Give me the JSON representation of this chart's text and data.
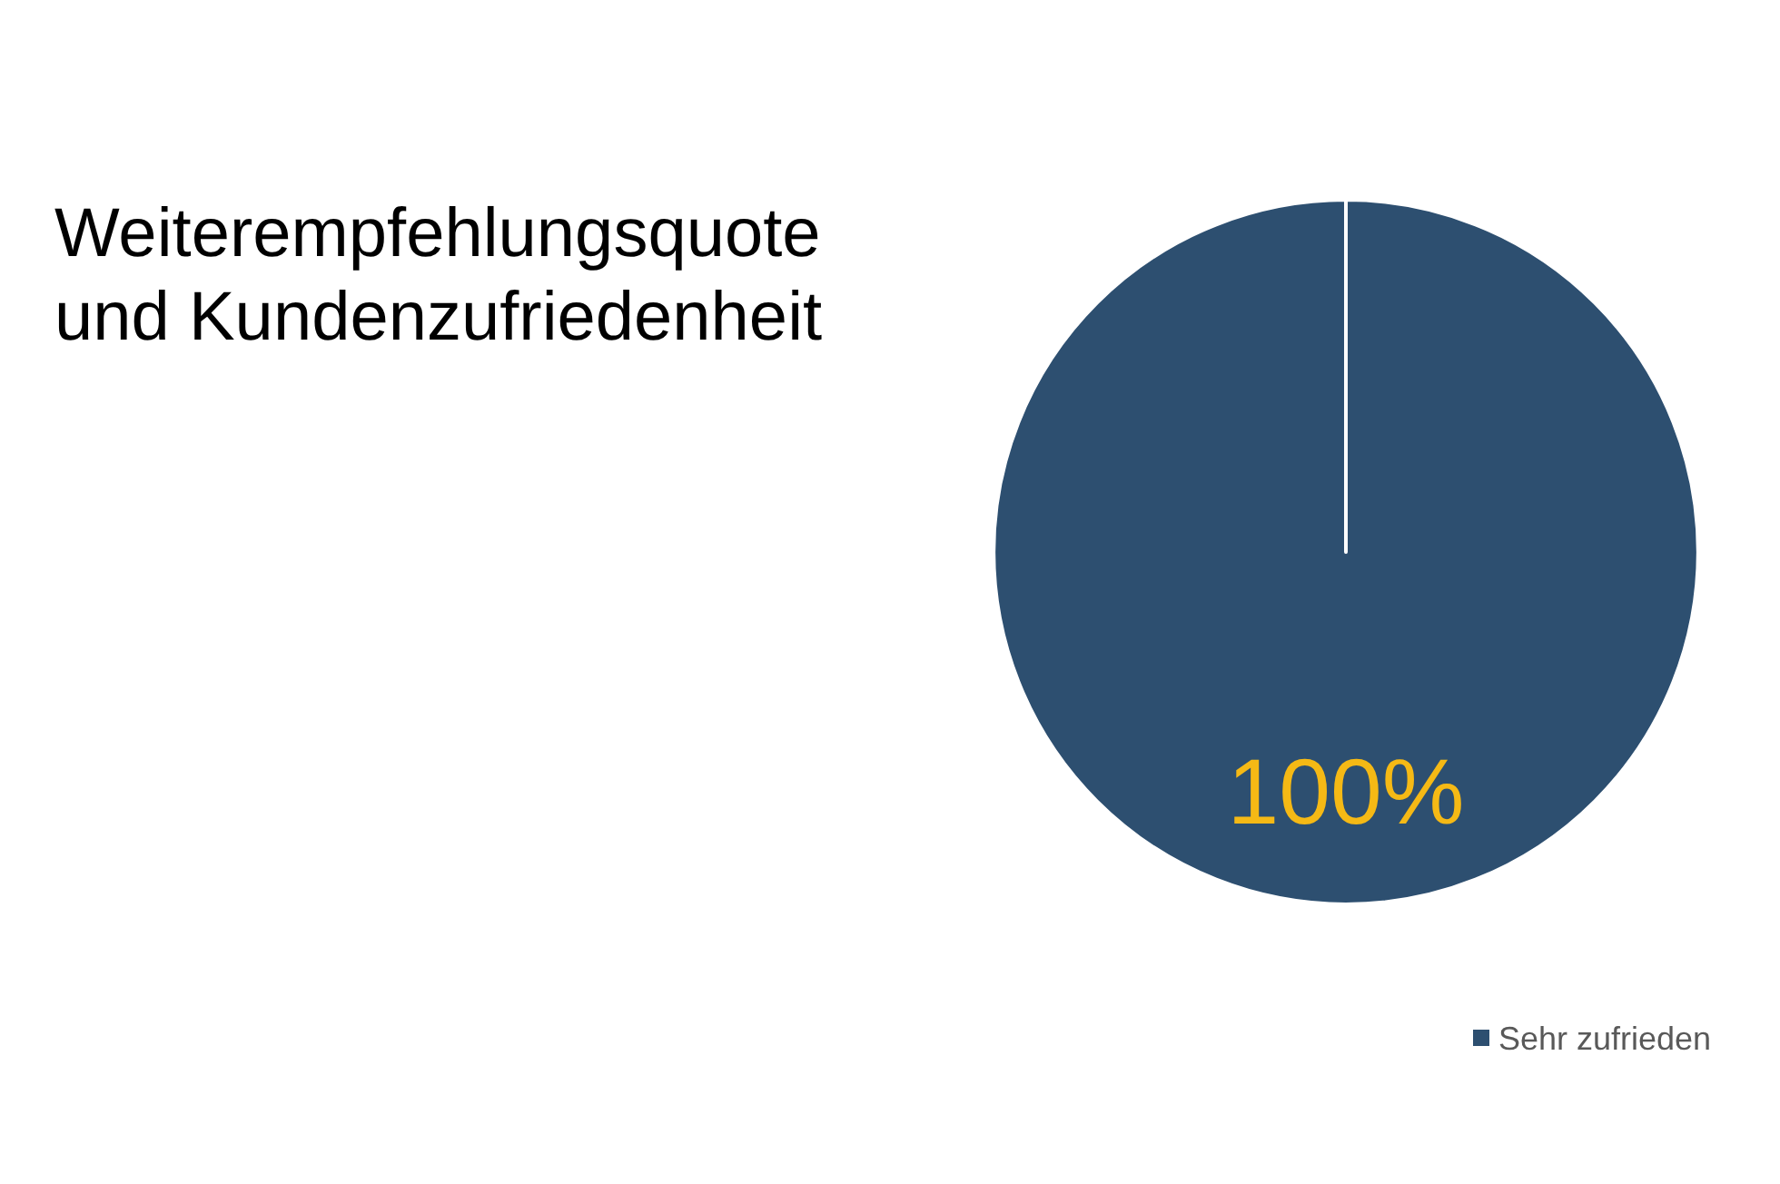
{
  "chart_data": {
    "type": "pie",
    "title": "Weiterempfehlungsquote und Kundenzufriedenheit",
    "categories": [
      "Sehr zufrieden"
    ],
    "values": [
      100
    ],
    "colors": [
      "#2d4f70"
    ],
    "value_labels": [
      "100%"
    ],
    "legend": "bottom right"
  }
}
